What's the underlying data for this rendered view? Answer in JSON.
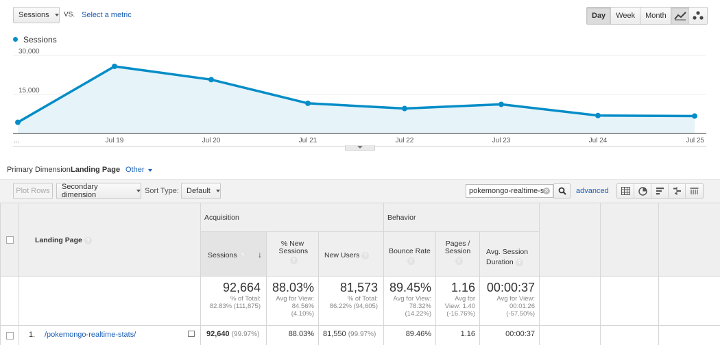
{
  "top_controls": {
    "metric_select": "Sessions",
    "vs_label": "VS.",
    "select_metric_link": "Select a metric",
    "periods": [
      "Day",
      "Week",
      "Month"
    ],
    "active_period": "Day"
  },
  "legend": {
    "label": "Sessions",
    "color": "#058dc7"
  },
  "chart_data": {
    "type": "area",
    "x": [
      "...",
      "Jul 19",
      "Jul 20",
      "Jul 21",
      "Jul 22",
      "Jul 23",
      "Jul 24",
      "Jul 25"
    ],
    "series": [
      {
        "name": "Sessions",
        "values": [
          4300,
          25800,
          20700,
          11600,
          9600,
          11200,
          6900,
          6700
        ]
      }
    ],
    "y_ticks": [
      "30,000",
      "15,000"
    ],
    "ylim": [
      0,
      30000
    ],
    "grid": true
  },
  "dimension_bar": {
    "primary_label": "Primary Dimension:",
    "primary_value": "Landing Page",
    "other_link": "Other"
  },
  "toolbar": {
    "plot_rows": "Plot Rows",
    "secondary_dimension": "Secondary dimension",
    "sort_type_label": "Sort Type:",
    "sort_type_value": "Default",
    "search_value": "pokemongo-realtime-s",
    "advanced_link": "advanced"
  },
  "table": {
    "landing_page_header": "Landing Page",
    "groups": {
      "acquisition": "Acquisition",
      "behavior": "Behavior"
    },
    "columns": {
      "sessions": "Sessions",
      "pct_new_sessions": "% New Sessions",
      "new_users": "New Users",
      "bounce_rate": "Bounce Rate",
      "pages_session": "Pages / Session",
      "avg_session_duration": "Avg. Session Duration"
    },
    "totals": {
      "sessions": {
        "value": "92,664",
        "sub": "% of Total: 82.83% (111,875)"
      },
      "pct_new_sessions": {
        "value": "88.03%",
        "sub": "Avg for View: 84.56% (4.10%)"
      },
      "new_users": {
        "value": "81,573",
        "sub": "% of Total: 86.22% (94,605)"
      },
      "bounce_rate": {
        "value": "89.45%",
        "sub": "Avg for View: 78.32% (14.22%)"
      },
      "pages_session": {
        "value": "1.16",
        "sub": "Avg for View: 1.40 (-16.76%)"
      },
      "avg_session_duration": {
        "value": "00:00:37",
        "sub": "Avg for View: 00:01:26 (-57.50%)"
      }
    },
    "rows": [
      {
        "index": "1.",
        "page": "/pokemongo-realtime-stats/",
        "sessions": "92,640",
        "sessions_pct": "(99.97%)",
        "pct_new_sessions": "88.03%",
        "new_users": "81,550",
        "new_users_pct": "(99.97%)",
        "bounce_rate": "89.46%",
        "pages_session": "1.16",
        "avg_session_duration": "00:00:37"
      }
    ]
  }
}
